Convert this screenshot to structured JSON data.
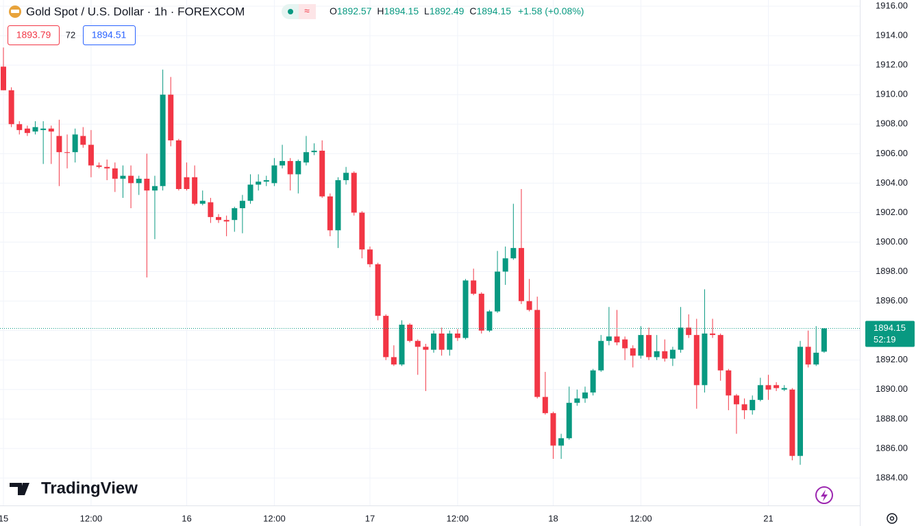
{
  "header": {
    "symbol": "Gold Spot / U.S. Dollar · 1h · FOREXCOM",
    "ohlc": [
      {
        "label": "O",
        "value": "1892.57"
      },
      {
        "label": "H",
        "value": "1894.15"
      },
      {
        "label": "L",
        "value": "1892.49"
      },
      {
        "label": "C",
        "value": "1894.15"
      }
    ],
    "change": "+1.58 (+0.08%)",
    "bid": "1893.79",
    "spread": "72",
    "ask": "1894.51",
    "countdown": "52:19",
    "logo": "TradingView"
  },
  "chart_data": {
    "type": "candlestick",
    "up_color": "#089981",
    "down_color": "#f23645",
    "grid": true,
    "categories": [
      "15",
      null,
      null,
      null,
      null,
      null,
      null,
      null,
      null,
      null,
      null,
      "12:00",
      null,
      null,
      null,
      null,
      null,
      null,
      null,
      null,
      null,
      null,
      null,
      "16",
      null,
      null,
      null,
      null,
      null,
      null,
      null,
      null,
      null,
      null,
      "12:00",
      null,
      null,
      null,
      null,
      null,
      null,
      null,
      null,
      null,
      null,
      null,
      "17",
      null,
      null,
      null,
      null,
      null,
      null,
      null,
      null,
      null,
      null,
      "12:00",
      null,
      null,
      null,
      null,
      null,
      null,
      null,
      null,
      null,
      null,
      null,
      "18",
      null,
      null,
      null,
      null,
      null,
      null,
      null,
      null,
      null,
      null,
      "12:00",
      null,
      null,
      null,
      null,
      null,
      null,
      null,
      null,
      null,
      null,
      null,
      null,
      null,
      null,
      null,
      "21",
      null,
      null,
      null,
      null,
      null,
      null,
      null
    ],
    "open": [
      1911.9,
      1910.3,
      1908.0,
      1907.7,
      1907.5,
      1907.6,
      1907.7,
      1907.2,
      1906.1,
      1906.1,
      1907.2,
      1906.6,
      1905.2,
      1905.1,
      1905.0,
      1904.3,
      1904.5,
      1904.0,
      1904.3,
      1903.5,
      1903.8,
      1910.0,
      1906.9,
      1904.4,
      1904.4,
      1902.6,
      1902.7,
      1901.7,
      1901.5,
      1901.5,
      1902.3,
      1902.8,
      1903.9,
      1904.1,
      1904.0,
      1905.2,
      1905.5,
      1904.6,
      1905.4,
      1906.1,
      1906.2,
      1903.1,
      1900.8,
      1904.2,
      1904.7,
      1902.0,
      1899.5,
      1898.5,
      1895.0,
      1892.2,
      1891.7,
      1894.4,
      1893.3,
      1892.9,
      1892.7,
      1893.8,
      1892.7,
      1893.8,
      1893.5,
      1897.4,
      1896.5,
      1894.0,
      1895.3,
      1898.0,
      1898.9,
      1899.6,
      1896.0,
      1895.4,
      1889.5,
      1888.4,
      1886.2,
      1886.7,
      1889.1,
      1889.4,
      1889.8,
      1891.3,
      1893.3,
      1893.6,
      1893.4,
      1892.8,
      1892.3,
      1893.7,
      1892.2,
      1892.6,
      1892.1,
      1892.7,
      1894.2,
      1893.7,
      1890.3,
      1893.8,
      1893.7,
      1891.3,
      1889.6,
      1889.0,
      1888.6,
      1889.3,
      1890.3,
      1890.3,
      1890.0,
      1890.0,
      1885.5,
      1892.9,
      1891.7,
      1892.57
    ],
    "high": [
      1913.2,
      1910.5,
      1908.2,
      1907.9,
      1908.2,
      1908.2,
      1907.9,
      1908.3,
      1907.3,
      1907.7,
      1907.8,
      1907.6,
      1905.4,
      1905.6,
      1905.4,
      1905.2,
      1905.2,
      1904.5,
      1906.0,
      1904.5,
      1911.7,
      1911.2,
      1907.0,
      1905.4,
      1905.2,
      1903.5,
      1903.0,
      1901.9,
      1901.8,
      1902.4,
      1903.2,
      1904.6,
      1904.6,
      1904.5,
      1905.7,
      1906.6,
      1905.7,
      1905.6,
      1907.2,
      1906.7,
      1906.9,
      1903.3,
      1904.4,
      1905.1,
      1904.8,
      1902.1,
      1899.7,
      1898.6,
      1895.1,
      1893.0,
      1894.7,
      1894.5,
      1893.4,
      1893.1,
      1894.0,
      1894.2,
      1894.0,
      1894.1,
      1897.5,
      1898.2,
      1896.6,
      1895.4,
      1899.4,
      1899.7,
      1902.6,
      1903.6,
      1897.5,
      1896.3,
      1891.2,
      1888.5,
      1887.0,
      1890.2,
      1890.0,
      1890.2,
      1891.4,
      1893.7,
      1895.6,
      1895.4,
      1893.6,
      1893.0,
      1894.3,
      1894.2,
      1893.7,
      1893.4,
      1892.9,
      1895.6,
      1895.1,
      1894.8,
      1896.8,
      1894.8,
      1893.8,
      1891.4,
      1889.7,
      1889.4,
      1889.6,
      1890.8,
      1891.0,
      1890.5,
      1890.3,
      1890.1,
      1893.3,
      1894.0,
      1894.3,
      1894.15
    ],
    "low": [
      1910.3,
      1907.8,
      1907.3,
      1907.2,
      1907.3,
      1905.3,
      1905.3,
      1903.8,
      1905.0,
      1905.4,
      1906.4,
      1904.4,
      1905.0,
      1904.2,
      1903.4,
      1903.0,
      1902.3,
      1903.2,
      1897.6,
      1900.2,
      1903.5,
      1906.5,
      1903.5,
      1903.5,
      1902.5,
      1902.5,
      1901.3,
      1901.3,
      1900.4,
      1900.7,
      1900.6,
      1902.6,
      1903.5,
      1903.8,
      1903.8,
      1905.0,
      1903.5,
      1903.3,
      1905.2,
      1905.9,
      1903.0,
      1900.4,
      1899.6,
      1903.9,
      1901.8,
      1898.9,
      1898.3,
      1894.7,
      1892.0,
      1891.6,
      1891.6,
      1893.2,
      1891.0,
      1889.9,
      1892.5,
      1892.3,
      1892.3,
      1893.3,
      1893.4,
      1896.4,
      1893.8,
      1893.9,
      1895.2,
      1897.1,
      1898.8,
      1895.8,
      1895.3,
      1889.4,
      1888.3,
      1885.3,
      1885.3,
      1886.6,
      1888.9,
      1889.1,
      1889.6,
      1891.2,
      1893.0,
      1893.0,
      1892.0,
      1891.5,
      1892.1,
      1892.0,
      1892.0,
      1891.9,
      1891.6,
      1892.5,
      1893.5,
      1888.7,
      1889.8,
      1893.5,
      1890.6,
      1888.6,
      1887.0,
      1888.0,
      1888.3,
      1889.2,
      1889.3,
      1889.9,
      1889.9,
      1885.2,
      1884.9,
      1891.5,
      1891.6,
      1892.49
    ],
    "close": [
      1910.3,
      1908.0,
      1907.6,
      1907.4,
      1907.8,
      1907.7,
      1907.5,
      1906.1,
      1906.05,
      1907.3,
      1906.6,
      1905.2,
      1905.1,
      1905.0,
      1904.3,
      1904.5,
      1904.0,
      1904.3,
      1903.5,
      1903.8,
      1910.0,
      1906.9,
      1903.6,
      1903.6,
      1902.6,
      1902.8,
      1901.7,
      1901.5,
      1901.4,
      1902.3,
      1902.8,
      1903.9,
      1904.1,
      1904.2,
      1905.2,
      1905.5,
      1904.6,
      1905.5,
      1906.1,
      1906.2,
      1903.1,
      1900.8,
      1904.2,
      1904.7,
      1902.0,
      1899.5,
      1898.5,
      1895.0,
      1892.2,
      1891.7,
      1894.4,
      1893.3,
      1892.9,
      1892.7,
      1893.8,
      1892.7,
      1893.8,
      1893.5,
      1897.4,
      1896.5,
      1894.0,
      1895.3,
      1898.0,
      1898.9,
      1899.6,
      1896.0,
      1895.4,
      1889.5,
      1888.4,
      1886.2,
      1886.7,
      1889.1,
      1889.4,
      1889.8,
      1891.3,
      1893.3,
      1893.6,
      1893.2,
      1892.8,
      1892.3,
      1893.7,
      1892.2,
      1892.6,
      1892.1,
      1892.7,
      1894.2,
      1893.7,
      1890.3,
      1893.8,
      1893.7,
      1891.3,
      1889.6,
      1889.0,
      1888.6,
      1889.3,
      1890.3,
      1890.0,
      1890.1,
      1890.1,
      1885.5,
      1892.9,
      1891.7,
      1892.5,
      1894.15
    ],
    "last_price": 1894.15,
    "ylim": [
      1882.14,
      1916.42
    ],
    "yticks": [
      {
        "value": 1884,
        "label": "1884.00"
      },
      {
        "value": 1886,
        "label": "1886.00"
      },
      {
        "value": 1888,
        "label": "1888.00"
      },
      {
        "value": 1890,
        "label": "1890.00"
      },
      {
        "value": 1892,
        "label": "1892.00"
      },
      {
        "value": 1894,
        "label": "1894.00"
      },
      {
        "value": 1896,
        "label": "1896.00"
      },
      {
        "value": 1898,
        "label": "1898.00"
      },
      {
        "value": 1900,
        "label": "1900.00"
      },
      {
        "value": 1902,
        "label": "1902.00"
      },
      {
        "value": 1904,
        "label": "1904.00"
      },
      {
        "value": 1906,
        "label": "1906.00"
      },
      {
        "value": 1908,
        "label": "1908.00"
      },
      {
        "value": 1910,
        "label": "1910.00"
      },
      {
        "value": 1912,
        "label": "1912.00"
      },
      {
        "value": 1914,
        "label": "1914.00"
      },
      {
        "value": 1916,
        "label": "1916.00"
      }
    ]
  }
}
